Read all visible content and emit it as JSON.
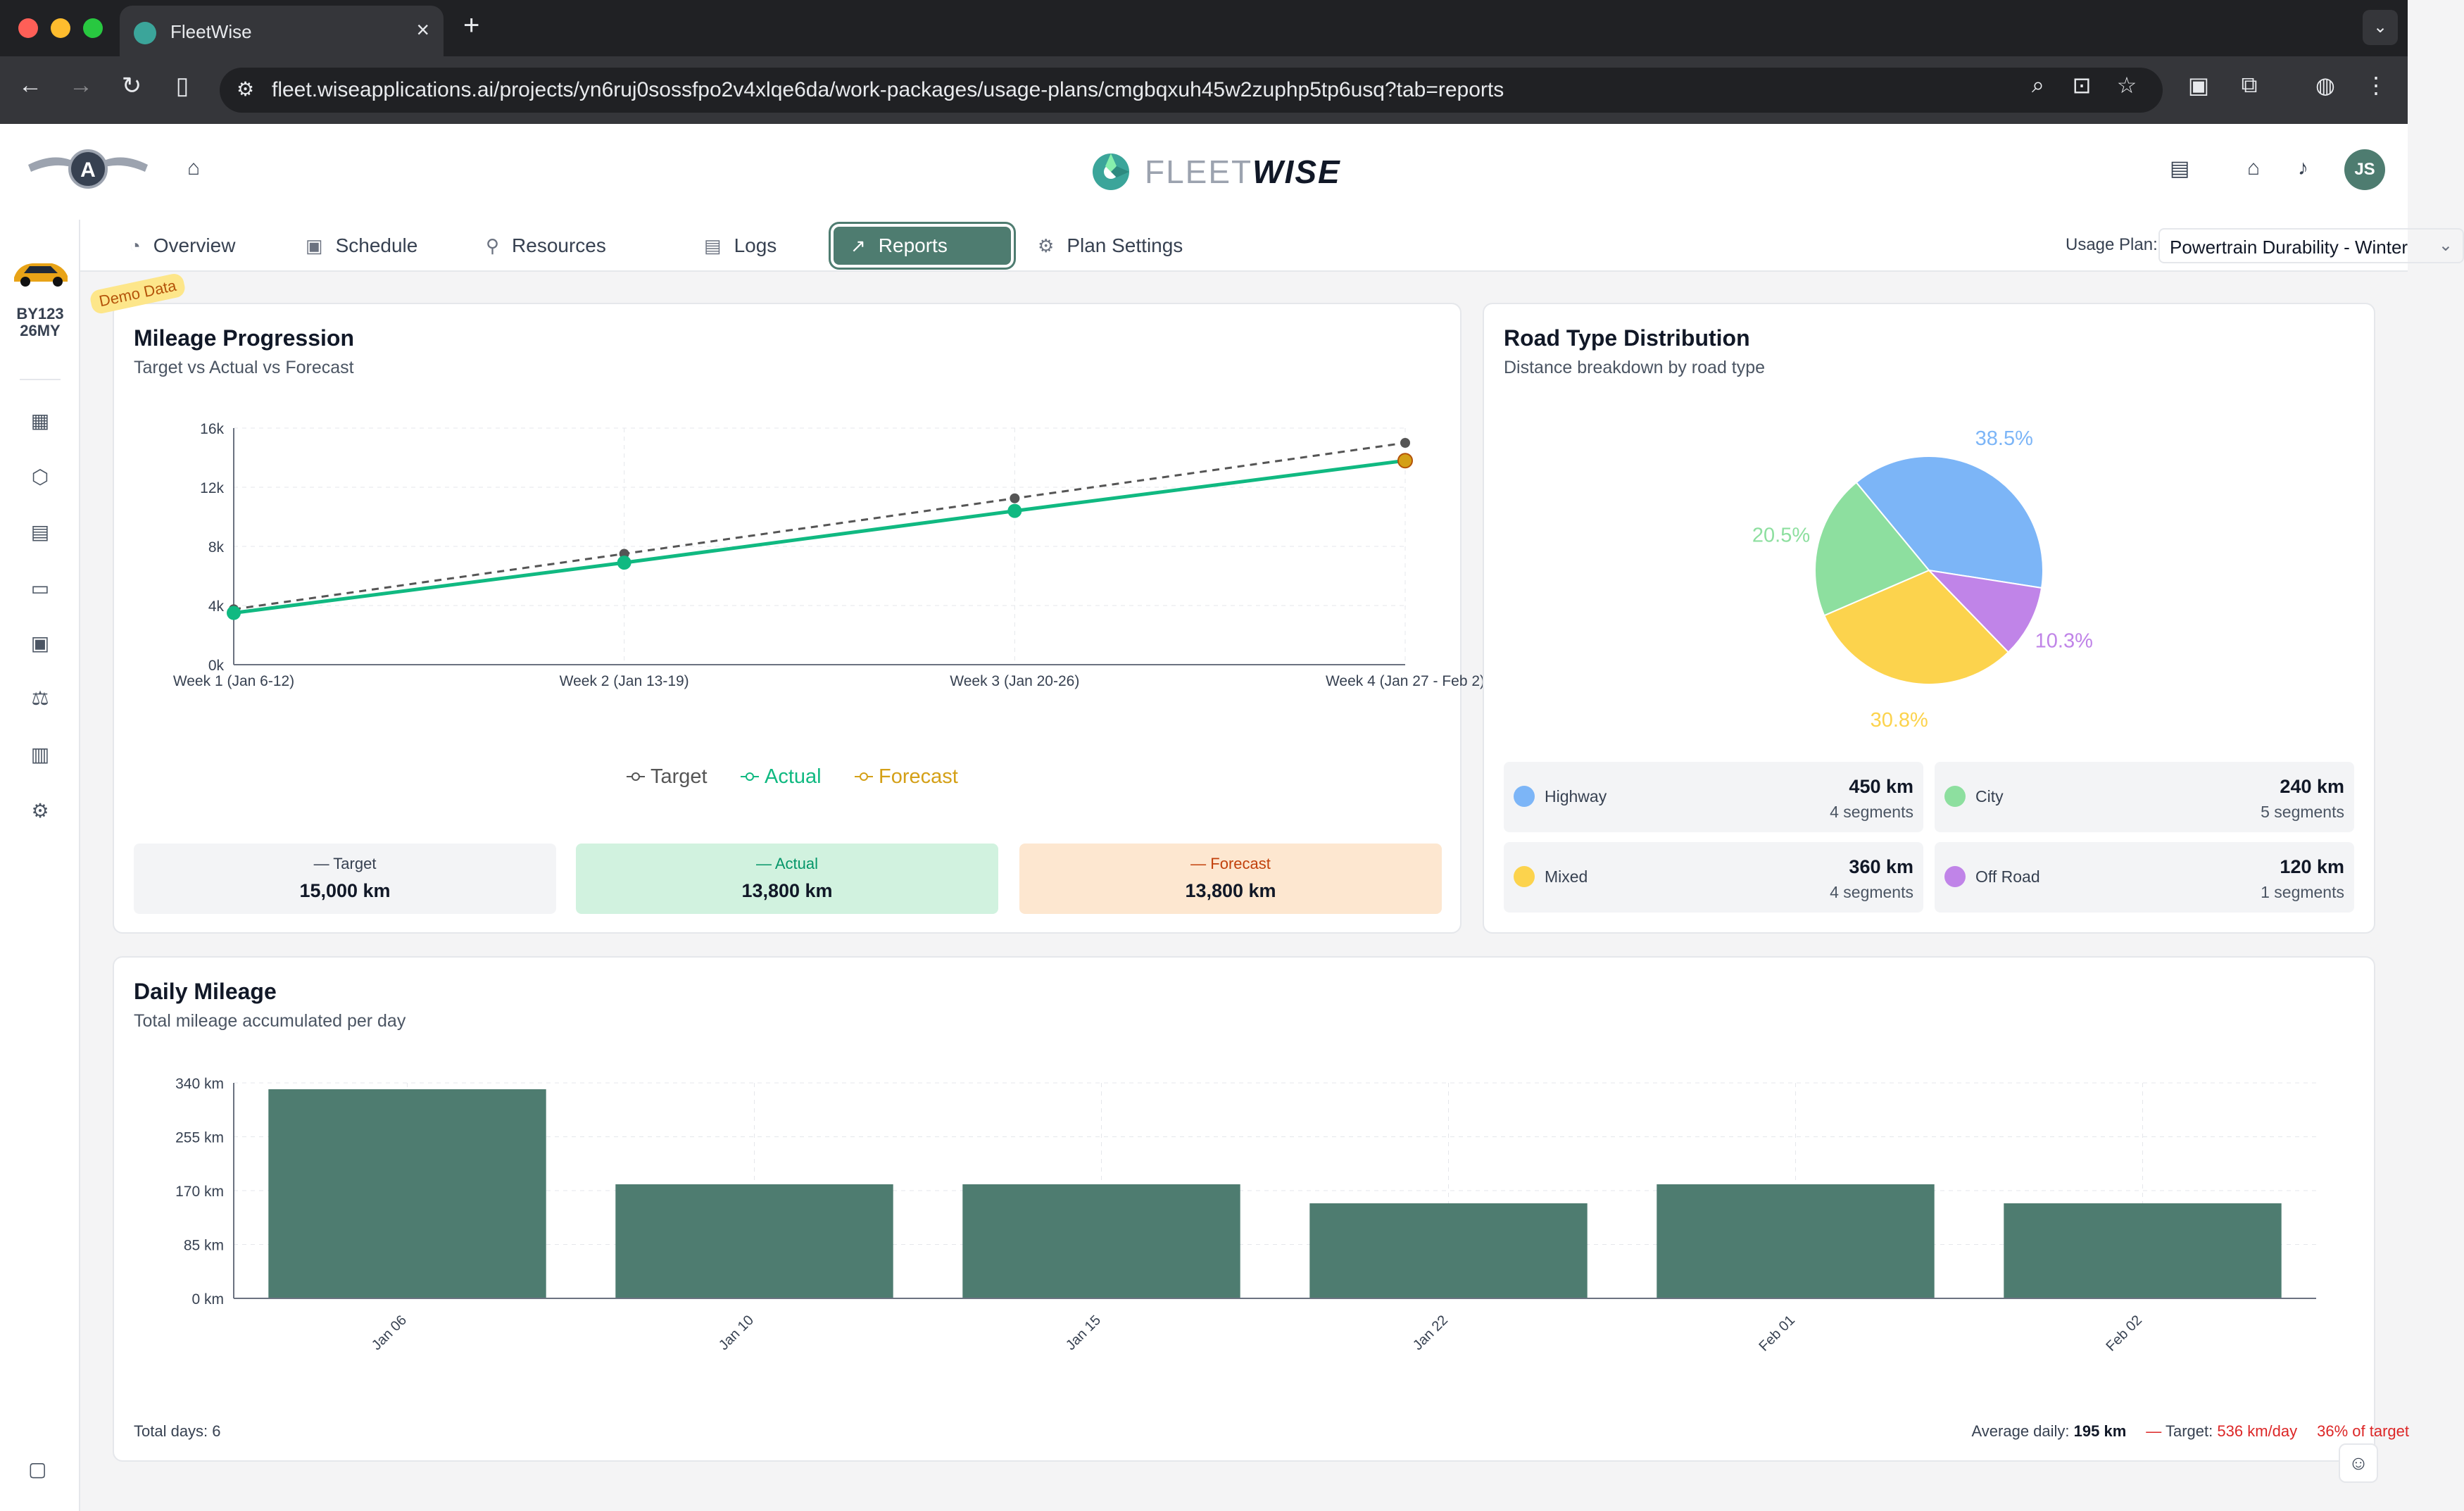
{
  "browser": {
    "tab_title": "FleetWise",
    "url": "fleet.wiseapplications.ai/projects/yn6ruj0sossfpo2v4xlqe6da/work-packages/usage-plans/cmgbqxuh45w2zuphp5tp6usq?tab=reports"
  },
  "header": {
    "brand_light": "FLEET",
    "brand_bold": "WISE",
    "avatar": "JS"
  },
  "vehicle": {
    "line1": "BY123",
    "line2": "26MY"
  },
  "tabs": [
    {
      "label": "Overview",
      "icon": "gauge-icon"
    },
    {
      "label": "Schedule",
      "icon": "calendar-icon"
    },
    {
      "label": "Resources",
      "icon": "bike-icon"
    },
    {
      "label": "Logs",
      "icon": "clipboard-icon"
    },
    {
      "label": "Reports",
      "icon": "chart-line-icon",
      "active": true
    },
    {
      "label": "Plan Settings",
      "icon": "gear-icon"
    }
  ],
  "usage_plan": {
    "label": "Usage Plan:",
    "value": "Powertrain Durability - Winter"
  },
  "demo_badge": "Demo Data",
  "mileage": {
    "title": "Mileage Progression",
    "subtitle": "Target vs Actual vs Forecast",
    "summary": {
      "target_label": "Target",
      "target_value": "15,000 km",
      "actual_label": "Actual",
      "actual_value": "13,800 km",
      "forecast_label": "Forecast",
      "forecast_value": "13,800 km"
    }
  },
  "road": {
    "title": "Road Type Distribution",
    "subtitle": "Distance breakdown by road type",
    "items": [
      {
        "name": "Highway",
        "km": "450 km",
        "segments": "4 segments",
        "color": "#7cb5f7"
      },
      {
        "name": "City",
        "km": "240 km",
        "segments": "5 segments",
        "color": "#8ddf9f"
      },
      {
        "name": "Mixed",
        "km": "360 km",
        "segments": "4 segments",
        "color": "#fcd34d"
      },
      {
        "name": "Off Road",
        "km": "120 km",
        "segments": "1 segments",
        "color": "#c084e8"
      }
    ]
  },
  "daily": {
    "title": "Daily Mileage",
    "subtitle": "Total mileage accumulated per day",
    "total_days": "Total days: 6",
    "avg_label": "Average daily:",
    "avg_value": "195 km",
    "target_label": "Target:",
    "target_value": "536 km/day",
    "pct": "36% of target"
  },
  "chart_data": [
    {
      "type": "line",
      "categories": [
        "Week 1 (Jan 6-12)",
        "Week 2 (Jan 13-19)",
        "Week 3 (Jan 20-26)",
        "Week 4 (Jan 27 - Feb 2)"
      ],
      "series": [
        {
          "name": "Target",
          "values": [
            3750,
            7500,
            11250,
            15000
          ],
          "color": "#555555"
        },
        {
          "name": "Actual",
          "values": [
            3500,
            6900,
            10400,
            13800
          ],
          "color": "#10b981"
        },
        {
          "name": "Forecast",
          "values": [
            null,
            null,
            null,
            13800
          ],
          "color": "#d4a017"
        }
      ],
      "yticks": [
        "0k",
        "4k",
        "8k",
        "12k",
        "16k"
      ],
      "ylim": [
        0,
        16000
      ]
    },
    {
      "type": "pie",
      "labels": [
        "Highway",
        "Off Road",
        "Mixed",
        "City"
      ],
      "values": [
        38.5,
        10.3,
        30.8,
        20.5
      ],
      "pct_labels": [
        "38.5%",
        "10.3%",
        "30.8%",
        "20.5%"
      ],
      "colors": [
        "#7cb5f7",
        "#c084e8",
        "#fcd34d",
        "#8ddf9f"
      ]
    },
    {
      "type": "bar",
      "categories": [
        "Jan 06",
        "Jan 10",
        "Jan 15",
        "Jan 22",
        "Feb 01",
        "Feb 02"
      ],
      "values": [
        330,
        180,
        180,
        150,
        180,
        150
      ],
      "yticks": [
        "0 km",
        "85 km",
        "170 km",
        "255 km",
        "340 km"
      ],
      "ylim": [
        0,
        340
      ],
      "color": "#4e7c70"
    }
  ]
}
